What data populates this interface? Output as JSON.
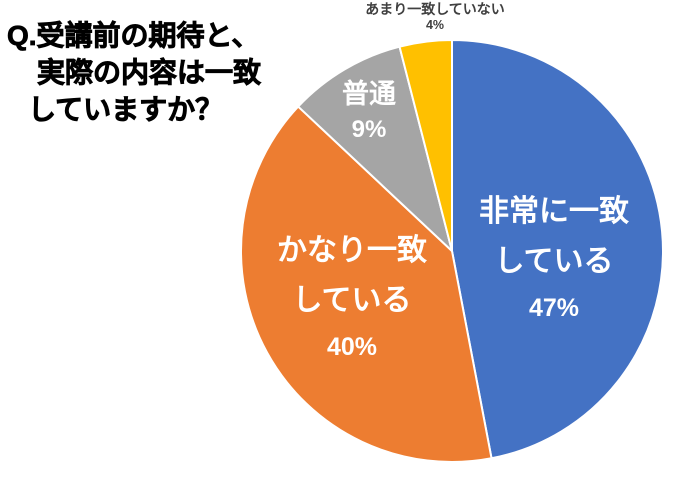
{
  "page": {
    "background_color": "#FFFFFF"
  },
  "chart_title": {
    "lines": [
      "Q.受講前の期待と、",
      "実際の内容は一致",
      "していますか？"
    ],
    "color": "#000000"
  },
  "chart_data": {
    "type": "pie",
    "title": "Q.受講前の期待と、実際の内容は一致していますか？",
    "categories": [
      "非常に一致している",
      "かなり一致している",
      "普通",
      "あまり一致していない"
    ],
    "values": [
      47,
      40,
      9,
      4
    ],
    "unit": "%",
    "start_angle": "top (12 o'clock)",
    "direction": "clockwise",
    "legend": "none",
    "separator_color": "#FFFFFF",
    "slices": [
      {
        "id": "strongly-match",
        "name": "非常に一致している",
        "value": 47,
        "color": "#4472C4",
        "label_lines": [
          "非常に一致",
          "している",
          "47%"
        ],
        "label_color": "#FFFFFF",
        "label_placement": "inside"
      },
      {
        "id": "fairly-match",
        "name": "かなり一致している",
        "value": 40,
        "color": "#ED7D31",
        "label_lines": [
          "かなり一致",
          "している",
          "40%"
        ],
        "label_color": "#FFFFFF",
        "label_placement": "inside"
      },
      {
        "id": "neutral",
        "name": "普通",
        "value": 9,
        "color": "#A5A5A5",
        "label_lines": [
          "普通",
          "9%"
        ],
        "label_color": "#FFFFFF",
        "label_placement": "inside"
      },
      {
        "id": "barely-match",
        "name": "あまり一致していない",
        "value": 4,
        "color": "#FFC000",
        "label_lines": [
          "あまり一致していない",
          "4%"
        ],
        "label_color": "#404040",
        "label_placement": "outside"
      }
    ]
  }
}
